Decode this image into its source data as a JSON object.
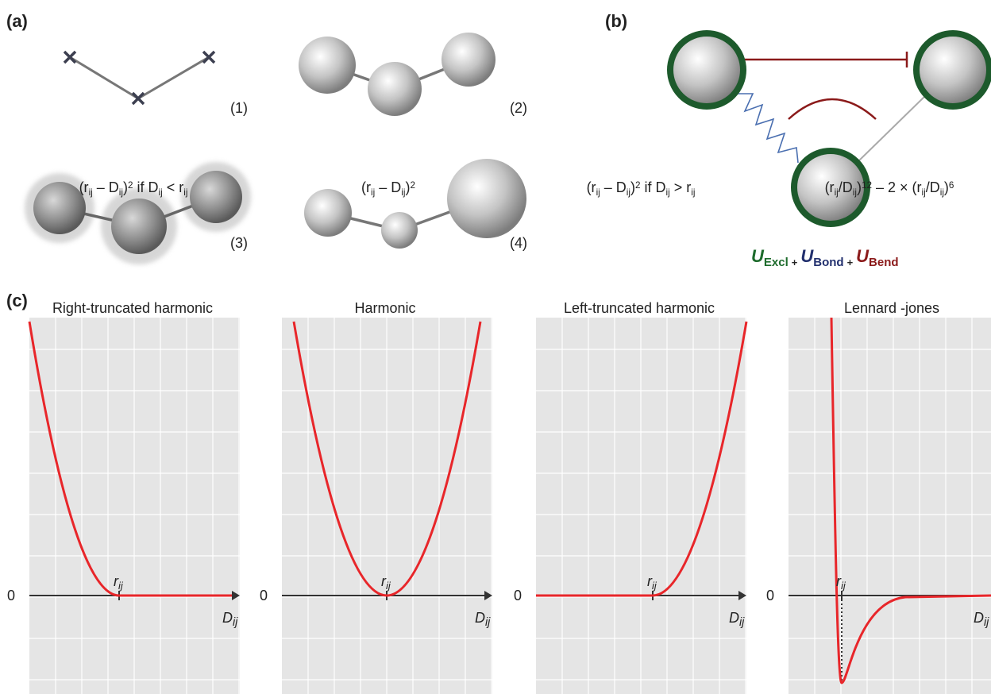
{
  "panels": {
    "a": "(a)",
    "b": "(b)",
    "c": "(c)"
  },
  "models": [
    "(1)",
    "(2)",
    "(3)",
    "(4)"
  ],
  "energy": {
    "terms": [
      {
        "symbol": "U",
        "subscript": "Excl"
      },
      {
        "symbol": "U",
        "subscript": "Bond"
      },
      {
        "symbol": "U",
        "subscript": "Bend"
      }
    ],
    "operators": [
      "+",
      "+"
    ]
  },
  "plots": [
    {
      "title": "Right-truncated harmonic",
      "formula": [
        "(r",
        "ij",
        " – D",
        "ij",
        ")",
        "2",
        " if D",
        "ij",
        " < r",
        "ij"
      ],
      "zero": "0",
      "r_label": [
        "r",
        "ij"
      ],
      "x_label": [
        "D",
        "ij"
      ]
    },
    {
      "title": "Harmonic",
      "formula": [
        "(r",
        "ij",
        " – D",
        "ij",
        ")",
        "2"
      ],
      "zero": "0",
      "r_label": [
        "r",
        "ij"
      ],
      "x_label": [
        "D",
        "ij"
      ]
    },
    {
      "title": "Left-truncated harmonic",
      "formula": [
        "(r",
        "ij",
        " – D",
        "ij",
        ")",
        "2",
        " if D",
        "ij",
        " > r",
        "ij"
      ],
      "zero": "0",
      "r_label": [
        "r",
        "ij"
      ],
      "x_label": [
        "D",
        "ij"
      ]
    },
    {
      "title": "Lennard -jones",
      "formula": [
        "(r",
        "ij",
        "/D",
        "ij",
        ")",
        "12",
        " – 2 × (r",
        "ij",
        "/D",
        "ij",
        ")",
        "6"
      ],
      "zero": "0",
      "r_label": [
        "r",
        "ij"
      ],
      "x_label": [
        "D",
        "ij"
      ]
    }
  ]
}
